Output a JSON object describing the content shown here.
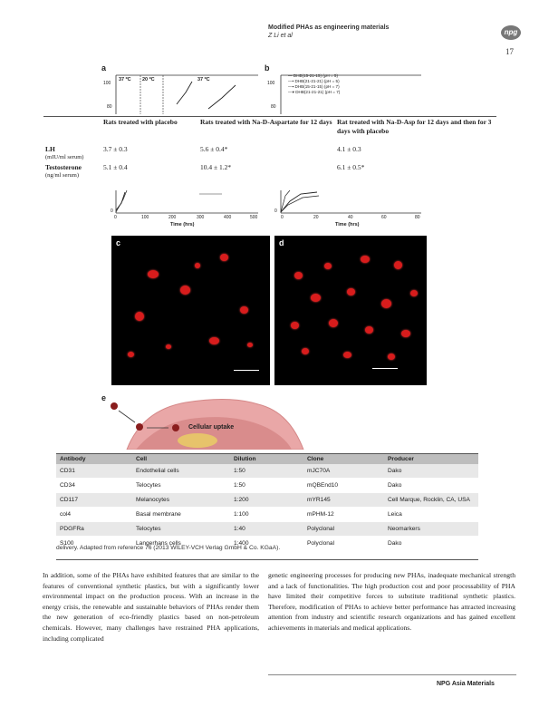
{
  "header": {
    "title": "Modified PHAs as engineering materials",
    "authors": "Z Li et al",
    "logo_text": "npg",
    "page_number": "17"
  },
  "figure": {
    "panel_a": {
      "label": "a",
      "temp_labels": [
        "37 ºC",
        "20 ºC",
        "37 ºC"
      ],
      "y_top_tick": "100",
      "y_bottom_tick": "80",
      "x_ticks": [
        "0",
        "100",
        "200",
        "300",
        "400",
        "500"
      ],
      "x_label": "Time (hrs)",
      "zero_tick": "0"
    },
    "panel_b": {
      "label": "b",
      "legend": [
        "DHB(15-21-15) (pH = 5)",
        "DHB(21-21-21) (pH = 5)",
        "DHB(15-21-15) (pH = 7)",
        "DHB(21-21-21) (pH = 7)"
      ],
      "y_top_tick": "100",
      "y_bottom_tick": "80",
      "x_ticks": [
        "0",
        "20",
        "40",
        "60",
        "80"
      ],
      "x_label": "Time (hrs)",
      "zero_tick": "0"
    },
    "panel_c": {
      "label": "c"
    },
    "panel_d": {
      "label": "d"
    },
    "panel_e": {
      "label": "e",
      "uptake_label": "Cellular uptake"
    }
  },
  "hormone_table": {
    "headers": [
      "Rats treated with placebo",
      "Rats treated with Na-D-Aspartate for 12 days",
      "Rat treated with Na-D-Asp for 12 days and then for 3 days with placebo"
    ],
    "rows": [
      {
        "label": "LH",
        "unit": "(mIU/ml serum)",
        "values": [
          "3.7 ± 0.3",
          "5.6 ± 0.4*",
          "4.1 ± 0.3"
        ]
      },
      {
        "label": "Testosterone",
        "unit": "(ng/ml serum)",
        "values": [
          "5.1 ± 0.4",
          "10.4 ± 1.2*",
          "6.1 ± 0.5*"
        ]
      }
    ]
  },
  "antibody_table": {
    "headers": [
      "Antibody",
      "Cell",
      "Dilution",
      "Clone",
      "Producer"
    ],
    "rows": [
      [
        "CD31",
        "Endothelial cells",
        "1:50",
        "mJC70A",
        "Dako"
      ],
      [
        "CD34",
        "Telocytes",
        "1:50",
        "mQBEnd10",
        "Dako"
      ],
      [
        "CD117",
        "Melanocytes",
        "1:200",
        "mYR145",
        "Cell Marque, Rocklin, CA, USA"
      ],
      [
        "col4",
        "Basal membrane",
        "1:100",
        "mPHM-12",
        "Leica"
      ],
      [
        "PDGFRa",
        "Telocytes",
        "1:40",
        "Polyclonal",
        "Neomarkers"
      ],
      [
        "S100",
        "Langerhans cells",
        "1:400",
        "Polyclonal",
        "Dako"
      ]
    ]
  },
  "caption": "delivery. Adapted from reference 76 (2013 WILEY-VCH Verlag GmbH & Co. KGaA).",
  "body": {
    "left": "In addition, some of the PHAs have exhibited features that are similar to the features of conventional synthetic plastics, but with a significantly lower environmental impact on the production process. With an increase in the energy crisis, the renewable and sustainable behaviors of PHAs render them the new generation of eco-friendly plastics based on non-petroleum chemicals. However, many challenges have restrained PHA applications, including complicated",
    "right": "genetic engineering processes for producing new PHAs, inadequate mechanical strength and a lack of functionalities. The high production cost and poor processability of PHA have limited their competitive forces to substitute traditional synthetic plastics. Therefore, modification of PHAs to achieve better performance has attracted increasing attention from industry and scientific research organizations and has gained excellent achievements in materials and medical applications."
  },
  "footer": "NPG Asia Materials"
}
